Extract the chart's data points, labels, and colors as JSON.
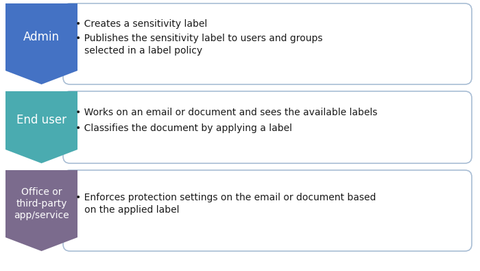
{
  "rows": [
    {
      "label": "Admin",
      "label_color": "#4472C4",
      "label_text_color": "#FFFFFF",
      "label_fontsize": 12,
      "label_fontweight": "normal",
      "bullet_lines": [
        "Creates a sensitivity label",
        "Publishes the sensitivity label to users and groups\n   selected in a label policy"
      ]
    },
    {
      "label": "End user",
      "label_color": "#4AABB0",
      "label_text_color": "#FFFFFF",
      "label_fontsize": 12,
      "label_fontweight": "normal",
      "bullet_lines": [
        "Works on an email or document and sees the available labels",
        "Classifies the document by applying a label"
      ]
    },
    {
      "label": "Office or\nthird-party\napp/service",
      "label_color": "#7B6B8D",
      "label_text_color": "#FFFFFF",
      "label_fontsize": 10,
      "label_fontweight": "normal",
      "bullet_lines": [
        "Enforces protection settings on the email or document based\n   on the applied label"
      ]
    }
  ],
  "bg_color": "#FFFFFF",
  "box_fill": "#FFFFFF",
  "box_edge_color": "#A8BDD4",
  "bullet_fontsize": 10,
  "bullet_text_color": "#1A1A1A",
  "fig_width": 7.0,
  "fig_height": 3.95,
  "dpi": 100
}
